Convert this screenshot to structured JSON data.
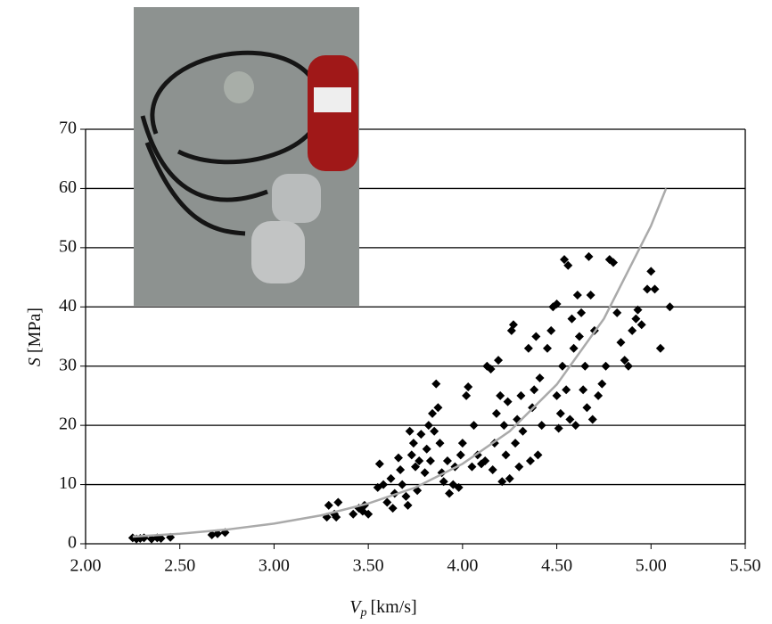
{
  "chart_data": {
    "type": "scatter",
    "x_label": {
      "symbol": "V",
      "subscript": "p",
      "unit": "[km/s]"
    },
    "y_label": {
      "symbol": "S",
      "unit": "[MPa]"
    },
    "xlim": [
      2.0,
      5.5
    ],
    "xticks": [
      {
        "value": 2.0,
        "label": "2.00"
      },
      {
        "value": 2.5,
        "label": "2.50"
      },
      {
        "value": 3.0,
        "label": "3.00"
      },
      {
        "value": 3.5,
        "label": "3.50"
      },
      {
        "value": 4.0,
        "label": "4.00"
      },
      {
        "value": 4.5,
        "label": "4.50"
      },
      {
        "value": 5.0,
        "label": "5.00"
      },
      {
        "value": 5.5,
        "label": "5.50"
      }
    ],
    "ylim": [
      0,
      70
    ],
    "yticks": [
      0,
      10,
      20,
      30,
      40,
      50,
      60,
      70
    ],
    "grid": true,
    "series": [
      {
        "type": "scatter",
        "color": "#000000",
        "x": [
          2.25,
          2.27,
          2.29,
          2.31,
          2.35,
          2.38,
          2.4,
          2.45,
          2.67,
          2.7,
          2.74,
          3.28,
          3.29,
          3.32,
          3.34,
          3.33,
          3.42,
          3.45,
          3.47,
          3.5,
          3.48,
          3.55,
          3.56,
          3.58,
          3.6,
          3.62,
          3.63,
          3.64,
          3.66,
          3.67,
          3.68,
          3.7,
          3.71,
          3.72,
          3.73,
          3.74,
          3.75,
          3.76,
          3.77,
          3.78,
          3.8,
          3.81,
          3.82,
          3.83,
          3.84,
          3.85,
          3.86,
          3.87,
          3.88,
          3.89,
          3.9,
          3.92,
          3.93,
          3.95,
          3.96,
          3.98,
          3.99,
          4.0,
          4.02,
          4.03,
          4.05,
          4.06,
          4.08,
          4.1,
          4.12,
          4.13,
          4.15,
          4.16,
          4.17,
          4.18,
          4.19,
          4.2,
          4.21,
          4.22,
          4.23,
          4.24,
          4.25,
          4.26,
          4.27,
          4.28,
          4.29,
          4.3,
          4.31,
          4.32,
          4.35,
          4.36,
          4.37,
          4.38,
          4.39,
          4.4,
          4.41,
          4.42,
          4.45,
          4.47,
          4.48,
          4.5,
          4.5,
          4.51,
          4.52,
          4.53,
          4.54,
          4.55,
          4.56,
          4.57,
          4.58,
          4.59,
          4.6,
          4.61,
          4.62,
          4.63,
          4.64,
          4.65,
          4.66,
          4.67,
          4.68,
          4.69,
          4.7,
          4.72,
          4.74,
          4.76,
          4.78,
          4.8,
          4.82,
          4.84,
          4.86,
          4.88,
          4.9,
          4.92,
          4.93,
          4.95,
          4.98,
          5.0,
          5.02,
          5.05,
          5.1
        ],
        "values": [
          1,
          0.8,
          0.9,
          1,
          0.8,
          1,
          0.9,
          1.1,
          1.5,
          1.7,
          1.9,
          4.5,
          6.5,
          5,
          7,
          4.5,
          5,
          6,
          5.5,
          5,
          6.5,
          9.5,
          13.5,
          10,
          7,
          11,
          6,
          8.5,
          14.5,
          12.5,
          10,
          8,
          6.5,
          19,
          15,
          17,
          13,
          9,
          14,
          18.5,
          12,
          16,
          20,
          14,
          22,
          19,
          27,
          23,
          17,
          12,
          10.5,
          14,
          8.5,
          10,
          13,
          9.5,
          15,
          17,
          25,
          26.5,
          13,
          20,
          15,
          13.5,
          14,
          30,
          29.5,
          12.5,
          17,
          22,
          31,
          25,
          10.5,
          20,
          15,
          24,
          11,
          36,
          37,
          17,
          21,
          13,
          25,
          19,
          33,
          14,
          23,
          26,
          35,
          15,
          28,
          20,
          33,
          36,
          40,
          40.5,
          25,
          19.5,
          22,
          30,
          48,
          26,
          47,
          21,
          38,
          33,
          20,
          42,
          35,
          39,
          26,
          30,
          23,
          48.5,
          42,
          21,
          36,
          25,
          27,
          30,
          48,
          47.5,
          39,
          34,
          31,
          30,
          36,
          38,
          39.5,
          37,
          43,
          46,
          43,
          33,
          40
        ]
      },
      {
        "type": "line",
        "color": "#aaaaaa",
        "x": [
          2.25,
          2.5,
          2.75,
          3.0,
          3.25,
          3.5,
          3.75,
          4.0,
          4.25,
          4.5,
          4.75,
          5.0,
          5.08
        ],
        "values": [
          1.2,
          1.7,
          2.4,
          3.4,
          4.8,
          6.8,
          9.5,
          13.5,
          19.0,
          26.9,
          38.0,
          53.7,
          60
        ]
      }
    ]
  }
}
